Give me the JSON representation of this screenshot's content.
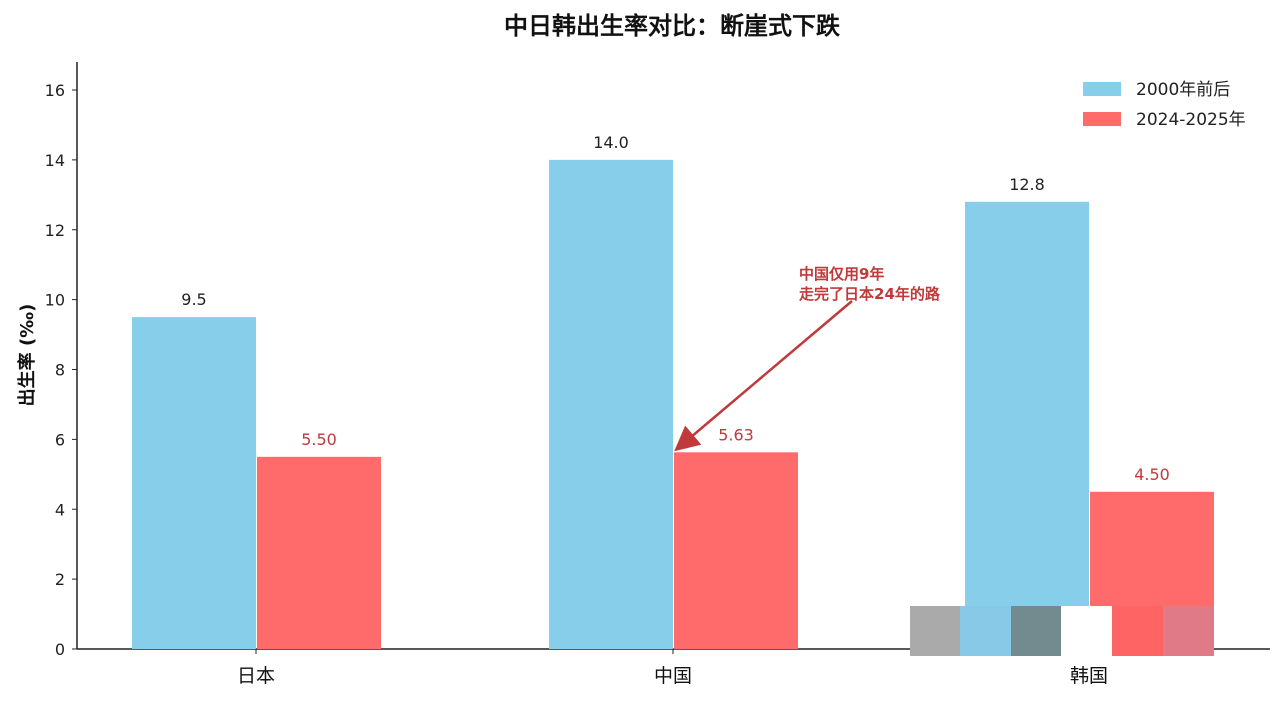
{
  "chart_data": {
    "type": "bar",
    "title": "中日韩出生率对比：断崖式下跌",
    "xlabel": "",
    "ylabel": "出生率 (‰)",
    "ylim": [
      0,
      16.8
    ],
    "yticks": [
      0,
      2,
      4,
      6,
      8,
      10,
      12,
      14,
      16
    ],
    "categories": [
      "日本",
      "中国",
      "韩国"
    ],
    "series": [
      {
        "name": "2000年前后",
        "color": "#87ceeb",
        "values": [
          9.5,
          14.0,
          12.8
        ],
        "labels": [
          "9.5",
          "14.0",
          "12.8"
        ],
        "label_color": "#222222"
      },
      {
        "name": "2024-2025年",
        "color": "#ff6b6b",
        "values": [
          5.5,
          5.63,
          4.5
        ],
        "labels": [
          "5.50",
          "5.63",
          "4.50"
        ],
        "label_color": "#c0393b"
      }
    ],
    "legend": "top-right",
    "grid": false,
    "annotation": {
      "lines": [
        "中国仅用9年",
        "走完了日本24年的路"
      ],
      "color": "#c0393b",
      "points_to": {
        "category": "中国",
        "value": 5.63
      }
    }
  }
}
